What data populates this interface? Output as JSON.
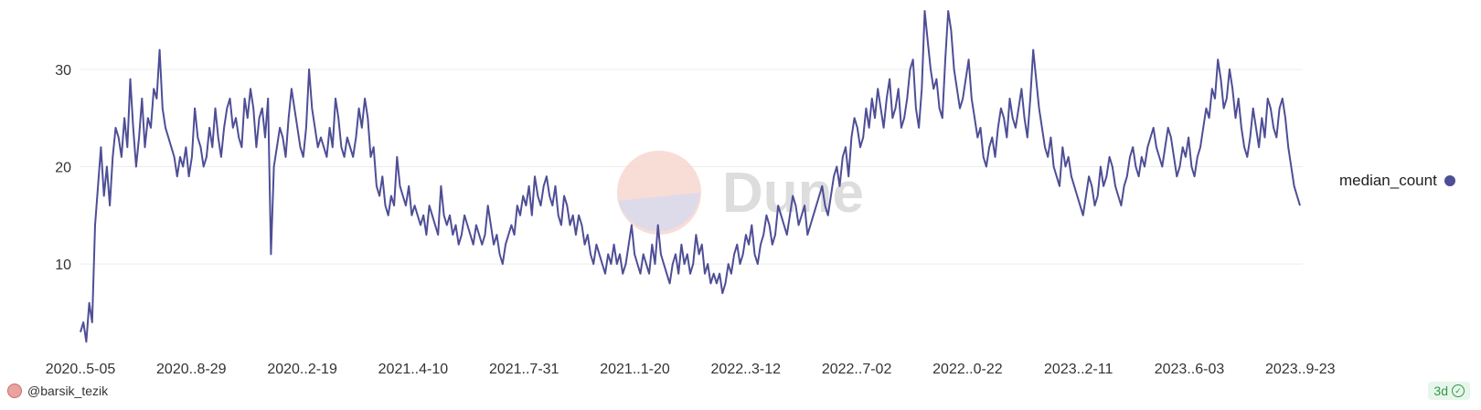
{
  "chart_data": {
    "type": "line",
    "title": "",
    "xlabel": "",
    "ylabel": "",
    "x_tick_labels": [
      "2020..5-05",
      "2020..8-29",
      "2020..2-19",
      "2021..4-10",
      "2021..7-31",
      "2021..1-20",
      "2022..3-12",
      "2022..7-02",
      "2022..0-22",
      "2023..2-11",
      "2023..6-03",
      "2023..9-23"
    ],
    "y_tick_labels": [
      "10",
      "20",
      "30"
    ],
    "ylim": [
      1,
      36
    ],
    "grid": true,
    "legend_position": "right",
    "series": [
      {
        "name": "median_count",
        "color": "#4e4e96",
        "values": [
          3,
          4,
          2,
          6,
          4,
          14,
          18,
          22,
          17,
          20,
          16,
          21,
          24,
          23,
          21,
          25,
          22,
          29,
          24,
          20,
          23,
          27,
          22,
          25,
          24,
          28,
          27,
          32,
          26,
          24,
          23,
          22,
          21,
          19,
          21,
          20,
          22,
          19,
          21,
          26,
          23,
          22,
          20,
          21,
          24,
          22,
          26,
          23,
          21,
          24,
          26,
          27,
          24,
          25,
          23,
          22,
          27,
          25,
          28,
          26,
          22,
          25,
          26,
          23,
          27,
          11,
          20,
          22,
          24,
          23,
          21,
          25,
          28,
          26,
          24,
          22,
          21,
          24,
          30,
          26,
          24,
          22,
          23,
          22,
          21,
          24,
          22,
          27,
          25,
          22,
          21,
          23,
          22,
          21,
          23,
          26,
          24,
          27,
          25,
          21,
          22,
          18,
          17,
          19,
          16,
          15,
          17,
          16,
          21,
          18,
          17,
          16,
          18,
          15,
          16,
          15,
          14,
          15,
          13,
          16,
          15,
          14,
          13,
          18,
          15,
          14,
          15,
          13,
          14,
          12,
          13,
          15,
          14,
          13,
          12,
          14,
          13,
          12,
          13,
          16,
          14,
          12,
          13,
          11,
          10,
          12,
          13,
          14,
          13,
          16,
          15,
          17,
          16,
          18,
          15,
          19,
          17,
          16,
          18,
          19,
          17,
          16,
          18,
          15,
          14,
          17,
          16,
          14,
          15,
          13,
          15,
          14,
          12,
          13,
          11,
          10,
          12,
          11,
          10,
          9,
          11,
          10,
          12,
          10,
          11,
          9,
          10,
          12,
          14,
          11,
          10,
          9,
          11,
          10,
          9,
          12,
          10,
          14,
          11,
          10,
          9,
          8,
          10,
          11,
          9,
          12,
          10,
          11,
          9,
          10,
          13,
          11,
          12,
          9,
          10,
          8,
          9,
          8,
          9,
          7,
          8,
          10,
          9,
          11,
          12,
          10,
          11,
          13,
          12,
          14,
          11,
          10,
          12,
          13,
          15,
          14,
          12,
          13,
          16,
          15,
          14,
          13,
          15,
          17,
          16,
          14,
          15,
          16,
          13,
          14,
          15,
          16,
          17,
          18,
          16,
          15,
          17,
          19,
          20,
          18,
          21,
          22,
          19,
          23,
          25,
          24,
          22,
          23,
          26,
          24,
          27,
          25,
          28,
          26,
          24,
          27,
          29,
          25,
          26,
          28,
          24,
          25,
          27,
          30,
          31,
          26,
          24,
          28,
          36,
          33,
          30,
          28,
          29,
          26,
          25,
          31,
          36,
          34,
          30,
          28,
          26,
          27,
          29,
          31,
          27,
          25,
          23,
          24,
          21,
          20,
          22,
          23,
          21,
          24,
          26,
          25,
          23,
          27,
          25,
          24,
          26,
          28,
          25,
          23,
          27,
          32,
          29,
          26,
          24,
          22,
          21,
          23,
          20,
          19,
          18,
          22,
          20,
          21,
          19,
          18,
          17,
          16,
          15,
          17,
          19,
          18,
          16,
          17,
          20,
          18,
          19,
          21,
          20,
          18,
          17,
          16,
          18,
          19,
          21,
          22,
          20,
          19,
          21,
          20,
          22,
          23,
          24,
          22,
          21,
          20,
          22,
          24,
          23,
          21,
          19,
          20,
          22,
          21,
          23,
          20,
          19,
          21,
          22,
          24,
          26,
          25,
          28,
          27,
          31,
          29,
          26,
          27,
          30,
          28,
          25,
          27,
          24,
          22,
          21,
          23,
          26,
          24,
          22,
          25,
          23,
          27,
          26,
          24,
          23,
          26,
          27,
          25,
          22,
          20,
          18,
          17,
          16
        ],
        "x_start": "2020-05-05",
        "x_end": "2023-10-01"
      }
    ]
  },
  "legend": {
    "label": "median_count",
    "color": "#4e4e96"
  },
  "footer": {
    "user": "@barsik_tezik",
    "badge": "3d"
  },
  "watermark": {
    "text": "Dune"
  }
}
